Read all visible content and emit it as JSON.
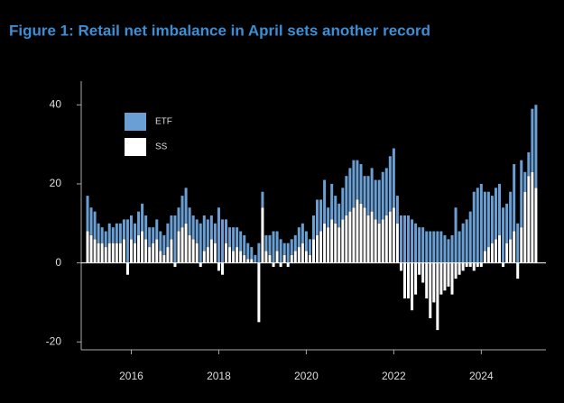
{
  "chart_data": {
    "type": "stacked_bar",
    "title": "Figure 1: Retail net imbalance in April sets another record",
    "categories": [
      null,
      null,
      null,
      null,
      null,
      null,
      null,
      null,
      null,
      null,
      null,
      null,
      "2016",
      null,
      null,
      null,
      null,
      null,
      null,
      null,
      null,
      null,
      null,
      null,
      null,
      null,
      null,
      null,
      null,
      null,
      null,
      null,
      null,
      null,
      null,
      null,
      "2018",
      null,
      null,
      null,
      null,
      null,
      null,
      null,
      null,
      null,
      null,
      null,
      null,
      null,
      null,
      null,
      null,
      null,
      null,
      null,
      null,
      null,
      null,
      null,
      "2020",
      null,
      null,
      null,
      null,
      null,
      null,
      null,
      null,
      null,
      null,
      null,
      null,
      null,
      null,
      null,
      null,
      null,
      null,
      null,
      null,
      null,
      null,
      null,
      "2022",
      null,
      null,
      null,
      null,
      null,
      null,
      null,
      null,
      null,
      null,
      null,
      null,
      null,
      null,
      null,
      null,
      null,
      null,
      null,
      null,
      null,
      null,
      null,
      "2024",
      null,
      null,
      null,
      null,
      null,
      null,
      null,
      null,
      null,
      null,
      null,
      null,
      null,
      null,
      null
    ],
    "series": [
      {
        "name": "SS",
        "color": "#ffffff",
        "values": [
          8,
          7,
          6,
          5,
          5,
          4,
          5,
          5,
          5,
          5,
          6,
          -3,
          6,
          5,
          7,
          8,
          6,
          4,
          5,
          6,
          3,
          2,
          4,
          6,
          -1,
          8,
          9,
          10,
          7,
          6,
          5,
          -1,
          3,
          4,
          6,
          5,
          -2,
          -3,
          5,
          4,
          3,
          4,
          3,
          2,
          1,
          1,
          0,
          -15,
          14,
          3,
          2,
          -1,
          3,
          -1,
          2,
          -1,
          2,
          3,
          4,
          5,
          3,
          2,
          6,
          7,
          8,
          10,
          9,
          11,
          10,
          9,
          11,
          12,
          13,
          14,
          16,
          15,
          14,
          12,
          13,
          11,
          10,
          11,
          12,
          13,
          14,
          10,
          -2,
          -9,
          -9,
          -12,
          -8,
          -3,
          -5,
          -9,
          -14,
          -10,
          -17,
          -8,
          -7,
          -6,
          -8,
          -4,
          -3,
          -2,
          -1,
          -1,
          -2,
          -1,
          -1,
          3,
          4,
          5,
          6,
          7,
          -1,
          5,
          6,
          8,
          -4,
          9,
          18,
          22,
          23,
          19
        ]
      },
      {
        "name": "ETF",
        "color": "#6a9fd4",
        "values": [
          9,
          7,
          7,
          5,
          4,
          4,
          5,
          4,
          5,
          5,
          5,
          11,
          6,
          5,
          6,
          7,
          6,
          5,
          4,
          5,
          5,
          5,
          6,
          6,
          12,
          6,
          8,
          9,
          7,
          6,
          6,
          10,
          9,
          7,
          6,
          5,
          14,
          11,
          6,
          5,
          6,
          5,
          5,
          5,
          4,
          3,
          2,
          5,
          4,
          4,
          5,
          8,
          5,
          6,
          3,
          5,
          4,
          4,
          5,
          5,
          5,
          4,
          6,
          9,
          8,
          11,
          5,
          9,
          7,
          6,
          8,
          10,
          11,
          12,
          10,
          10,
          8,
          10,
          11,
          10,
          11,
          12,
          12,
          14,
          15,
          7,
          12,
          12,
          12,
          11,
          10,
          9,
          9,
          8,
          8,
          8,
          8,
          8,
          7,
          6,
          7,
          14,
          8,
          10,
          11,
          13,
          18,
          19,
          20,
          15,
          14,
          12,
          13,
          13,
          14,
          10,
          12,
          17,
          10,
          17,
          5,
          6,
          16,
          21
        ]
      }
    ],
    "ylim": [
      -22,
      46
    ],
    "yticks": [
      -20,
      0,
      20,
      40
    ]
  }
}
